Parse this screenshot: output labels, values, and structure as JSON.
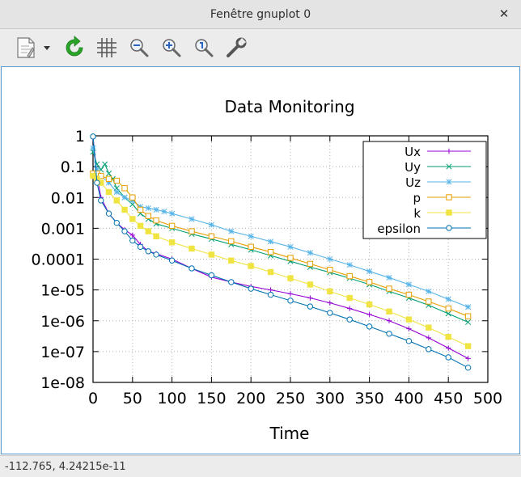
{
  "window": {
    "title": "Fenêtre gnuplot 0"
  },
  "toolbar": {
    "buttons": [
      {
        "icon": "export-icon"
      },
      {
        "icon": "dropdown-arrow-icon"
      },
      {
        "icon": "replot-icon"
      },
      {
        "icon": "grid-icon"
      },
      {
        "icon": "zoom-out-icon"
      },
      {
        "icon": "zoom-in-icon"
      },
      {
        "icon": "zoom-fit-icon"
      },
      {
        "icon": "settings-wrench-icon"
      }
    ]
  },
  "status": {
    "coords": "-112.765,  4.24215e-11"
  },
  "chart_data": {
    "type": "line",
    "title": "Data Monitoring",
    "xlabel": "Time",
    "ylabel": "",
    "xlim": [
      0,
      500
    ],
    "ylim": [
      1e-08,
      1
    ],
    "yscale": "log",
    "grid": true,
    "legend_position": "top-right",
    "x_ticks": [
      "0",
      "50",
      "100",
      "150",
      "200",
      "250",
      "300",
      "350",
      "400",
      "450",
      "500"
    ],
    "y_ticks": [
      "1",
      "0.1",
      "0.01",
      "0.001",
      "0.0001",
      "1e-05",
      "1e-06",
      "1e-07",
      "1e-08"
    ],
    "series": [
      {
        "name": "Ux",
        "color": "#9400d3",
        "marker": "plus",
        "x": [
          0,
          5,
          10,
          20,
          30,
          40,
          50,
          60,
          70,
          80,
          100,
          125,
          150,
          175,
          200,
          225,
          250,
          275,
          300,
          325,
          350,
          375,
          400,
          425,
          450,
          475
        ],
        "y": [
          0.9,
          0.05,
          0.01,
          0.003,
          0.0015,
          0.0009,
          0.0006,
          0.0003,
          0.00018,
          0.00015,
          0.0001,
          5e-05,
          2.6e-05,
          1.8e-05,
          1.3e-05,
          1e-05,
          7.5e-06,
          5.5e-06,
          3.8e-06,
          2.5e-06,
          1.6e-06,
          1e-06,
          5.5e-07,
          2.8e-07,
          1.3e-07,
          6e-08
        ]
      },
      {
        "name": "Uy",
        "color": "#009e73",
        "marker": "cross",
        "x": [
          0,
          5,
          10,
          15,
          20,
          25,
          30,
          40,
          50,
          60,
          70,
          80,
          100,
          125,
          150,
          175,
          200,
          225,
          250,
          275,
          300,
          325,
          350,
          375,
          400,
          425,
          450,
          475
        ],
        "y": [
          0.3,
          0.12,
          0.08,
          0.12,
          0.06,
          0.04,
          0.02,
          0.01,
          0.006,
          0.003,
          0.002,
          0.0014,
          0.001,
          0.00065,
          0.00045,
          0.0003,
          0.0002,
          0.00013,
          8.5e-05,
          5.5e-05,
          3.7e-05,
          2.4e-05,
          1.5e-05,
          9e-06,
          5.5e-06,
          3.2e-06,
          1.7e-06,
          9e-07
        ]
      },
      {
        "name": "Uz",
        "color": "#56b4e9",
        "marker": "star",
        "x": [
          0,
          5,
          10,
          20,
          30,
          40,
          50,
          60,
          70,
          80,
          90,
          100,
          125,
          150,
          175,
          200,
          225,
          250,
          275,
          300,
          325,
          350,
          375,
          400,
          425,
          450,
          475
        ],
        "y": [
          0.4,
          0.08,
          0.05,
          0.03,
          0.015,
          0.01,
          0.008,
          0.005,
          0.0045,
          0.004,
          0.0035,
          0.003,
          0.002,
          0.0013,
          0.0008,
          0.00055,
          0.00037,
          0.00025,
          0.00016,
          0.0001,
          6.5e-05,
          4e-05,
          2.5e-05,
          1.5e-05,
          9e-06,
          5e-06,
          2.8e-06
        ]
      },
      {
        "name": "p",
        "color": "#e69f00",
        "marker": "square",
        "x": [
          0,
          5,
          10,
          20,
          30,
          40,
          50,
          60,
          70,
          80,
          100,
          125,
          150,
          175,
          200,
          225,
          250,
          275,
          300,
          325,
          350,
          375,
          400,
          425,
          450,
          475
        ],
        "y": [
          0.06,
          0.06,
          0.05,
          0.04,
          0.035,
          0.02,
          0.01,
          0.004,
          0.0025,
          0.0018,
          0.0012,
          0.0008,
          0.00055,
          0.00038,
          0.00025,
          0.00017,
          0.00011,
          7e-05,
          4.5e-05,
          2.8e-05,
          1.8e-05,
          1.1e-05,
          7e-06,
          4.2e-06,
          2.5e-06,
          1.4e-06
        ]
      },
      {
        "name": "k",
        "color": "#f0e442",
        "marker": "filled-square",
        "x": [
          0,
          5,
          10,
          20,
          30,
          40,
          50,
          60,
          70,
          80,
          100,
          125,
          150,
          175,
          200,
          225,
          250,
          275,
          300,
          325,
          350,
          375,
          400,
          425,
          450,
          475
        ],
        "y": [
          0.05,
          0.04,
          0.03,
          0.015,
          0.008,
          0.004,
          0.002,
          0.0012,
          0.0008,
          0.00055,
          0.00035,
          0.00022,
          0.00014,
          9e-05,
          6e-05,
          3.8e-05,
          2.4e-05,
          1.5e-05,
          9e-06,
          5.5e-06,
          3.4e-06,
          2e-06,
          1.1e-06,
          6e-07,
          3e-07,
          1.5e-07
        ]
      },
      {
        "name": "epsilon",
        "color": "#0072b2",
        "marker": "circle",
        "x": [
          0,
          5,
          10,
          20,
          30,
          40,
          50,
          60,
          70,
          80,
          100,
          125,
          150,
          175,
          200,
          225,
          250,
          275,
          300,
          325,
          350,
          375,
          400,
          425,
          450,
          475
        ],
        "y": [
          0.95,
          0.03,
          0.008,
          0.003,
          0.0015,
          0.0008,
          0.0004,
          0.00025,
          0.00018,
          0.00014,
          9e-05,
          5e-05,
          3e-05,
          1.8e-05,
          1.1e-05,
          7e-06,
          4.5e-06,
          2.9e-06,
          1.8e-06,
          1.1e-06,
          6.5e-07,
          3.8e-07,
          2.2e-07,
          1.2e-07,
          6.5e-08,
          3e-08
        ]
      }
    ]
  }
}
